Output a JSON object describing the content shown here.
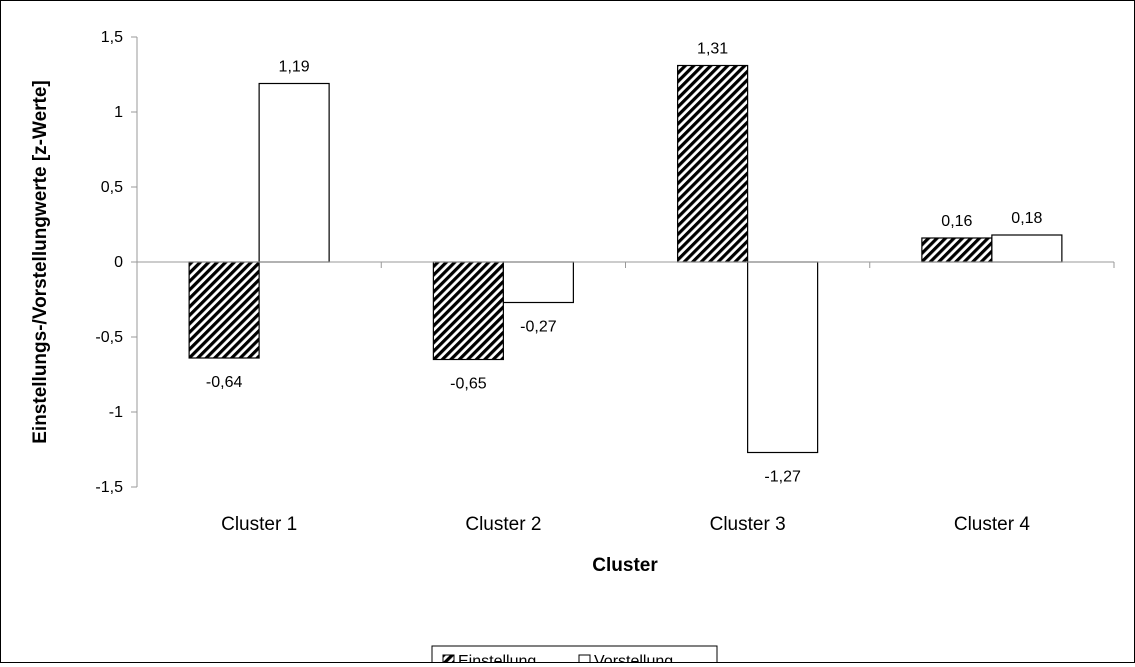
{
  "chart_data": {
    "type": "bar",
    "categories": [
      "Cluster 1",
      "Cluster 2",
      "Cluster 3",
      "Cluster 4"
    ],
    "series": [
      {
        "name": "Einstellung",
        "values": [
          -0.64,
          -0.65,
          1.31,
          0.16
        ],
        "labels": [
          "-0,64",
          "-0,65",
          "1,31",
          "0,16"
        ],
        "fill": "hatched"
      },
      {
        "name": "Vorstellung",
        "values": [
          1.19,
          -0.27,
          -1.27,
          0.18
        ],
        "labels": [
          "1,19",
          "-0,27",
          "-1,27",
          "0,18"
        ],
        "fill": "white"
      }
    ],
    "title": "",
    "xlabel": "Cluster",
    "ylabel": "Einstellungs-/Vorstellungwerte [z-Werte]",
    "ylim": [
      -1.5,
      1.5
    ],
    "yticks": [
      1.5,
      1,
      0.5,
      0,
      -0.5,
      -1,
      -1.5
    ],
    "ytick_labels": [
      "1,5",
      "1",
      "0,5",
      "0",
      "-0,5",
      "-1",
      "-1,5"
    ],
    "grid": false,
    "legend_position": "bottom"
  }
}
